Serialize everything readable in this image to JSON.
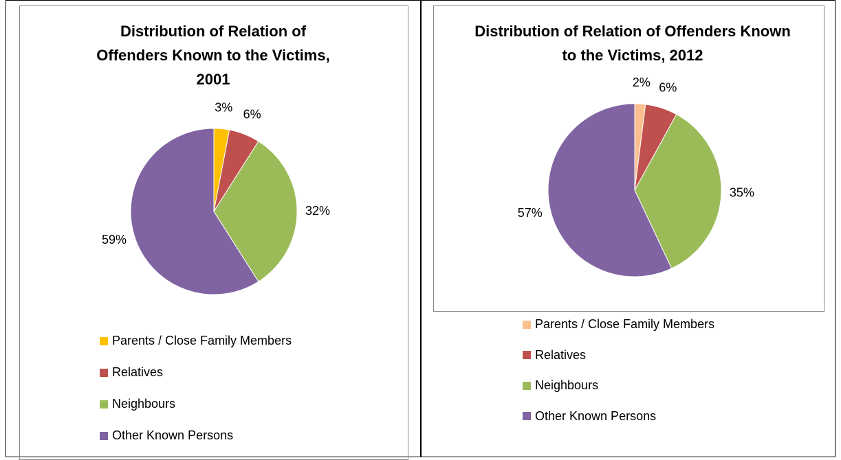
{
  "chart_data": [
    {
      "type": "pie",
      "title": "Distribution of Relation of Offenders Known to the Victims, 2001",
      "categories": [
        "Parents / Close Family Members",
        "Relatives",
        "Neighbours",
        "Other Known Persons"
      ],
      "values": [
        3,
        6,
        32,
        59
      ],
      "value_labels": [
        "3%",
        "6%",
        "32%",
        "59%"
      ],
      "colors": [
        "#ffc000",
        "#c0504d",
        "#9bbb59",
        "#8064a2"
      ]
    },
    {
      "type": "pie",
      "title": "Distribution of Relation of Offenders Known to the Victims, 2012",
      "categories": [
        "Parents / Close Family Members",
        "Relatives",
        "Neighbours",
        "Other Known Persons"
      ],
      "values": [
        2,
        6,
        35,
        57
      ],
      "value_labels": [
        "2%",
        "6%",
        "35%",
        "57%"
      ],
      "colors": [
        "#fabf8f",
        "#c0504d",
        "#9bbb59",
        "#8064a2"
      ]
    }
  ]
}
